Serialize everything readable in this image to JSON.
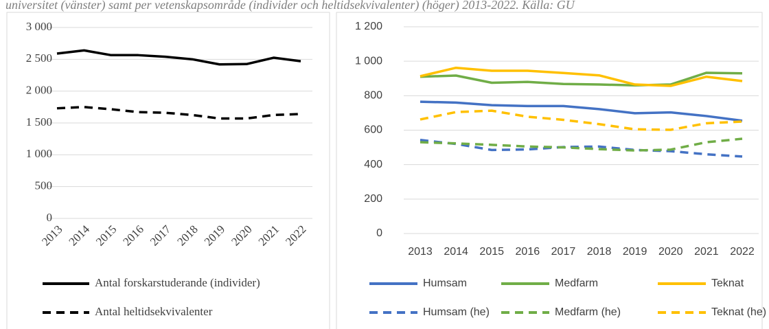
{
  "caption": "universitet (vänster) samt per vetenskapsområde (individer och heltidsekvivalenter) (höger) 2013-2022. Källa: GU",
  "chart_data": [
    {
      "type": "line",
      "categories": [
        "2013",
        "2014",
        "2015",
        "2016",
        "2017",
        "2018",
        "2019",
        "2020",
        "2021",
        "2022"
      ],
      "ylim": [
        0,
        3000
      ],
      "yticks": [
        0,
        500,
        {
          "value": 1000,
          "label": "1 000"
        },
        {
          "value": 1500,
          "label": "1 500"
        },
        {
          "value": 2000,
          "label": "2 000"
        },
        {
          "value": 2500,
          "label": "2 500"
        },
        {
          "value": 3000,
          "label": "3 000"
        }
      ],
      "grid": true,
      "legend": "bottom",
      "series": [
        {
          "name": "Antal forskarstuderande (individer)",
          "color": "#000000",
          "dashed": false,
          "values": [
            2590,
            2640,
            2565,
            2565,
            2540,
            2500,
            2420,
            2425,
            2525,
            2470
          ]
        },
        {
          "name": "Antal heltidsekvivalenter",
          "color": "#000000",
          "dashed": true,
          "values": [
            1730,
            1750,
            1715,
            1670,
            1660,
            1625,
            1570,
            1570,
            1625,
            1640
          ]
        }
      ]
    },
    {
      "type": "line",
      "categories": [
        "2013",
        "2014",
        "2015",
        "2016",
        "2017",
        "2018",
        "2019",
        "2020",
        "2021",
        "2022"
      ],
      "ylim": [
        0,
        1200
      ],
      "yticks": [
        0,
        200,
        400,
        600,
        800,
        {
          "value": 1000,
          "label": "1 000"
        },
        {
          "value": 1200,
          "label": "1 200"
        }
      ],
      "grid": true,
      "legend": "bottom",
      "series": [
        {
          "name": "Humsam",
          "color": "#4472c4",
          "dashed": false,
          "values": [
            765,
            760,
            745,
            740,
            740,
            722,
            698,
            703,
            682,
            655
          ]
        },
        {
          "name": "Medfarm",
          "color": "#70ad47",
          "dashed": false,
          "values": [
            910,
            917,
            875,
            880,
            868,
            865,
            860,
            865,
            933,
            930
          ]
        },
        {
          "name": "Teknat",
          "color": "#ffc000",
          "dashed": false,
          "values": [
            913,
            962,
            945,
            945,
            932,
            918,
            865,
            857,
            910,
            885
          ]
        },
        {
          "name": "Humsam (he)",
          "color": "#4472c4",
          "dashed": true,
          "values": [
            543,
            520,
            485,
            488,
            502,
            505,
            485,
            478,
            460,
            447
          ]
        },
        {
          "name": "Medfarm (he)",
          "color": "#70ad47",
          "dashed": true,
          "values": [
            530,
            523,
            515,
            505,
            500,
            490,
            482,
            487,
            530,
            550
          ]
        },
        {
          "name": "Teknat (he)",
          "color": "#ffc000",
          "dashed": true,
          "values": [
            662,
            705,
            713,
            678,
            660,
            635,
            605,
            602,
            640,
            650
          ]
        }
      ]
    }
  ]
}
